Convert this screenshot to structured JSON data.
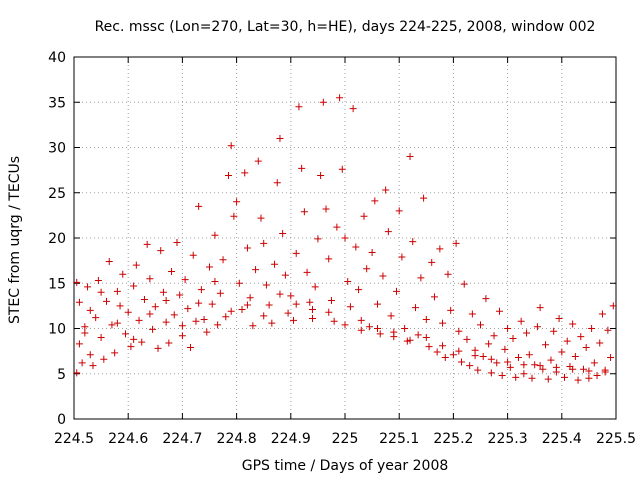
{
  "chart_data": {
    "type": "scatter",
    "title": "Rec. mssc (Lon=270, Lat=30, h=HE), days 224-225, 2008, window 002",
    "xlabel": "GPS time / Days of year 2008",
    "ylabel": "STEC from uqrg / TECUs",
    "xlim": [
      224.5,
      225.5
    ],
    "ylim": [
      0,
      40
    ],
    "x_ticks": [
      224.5,
      224.6,
      224.7,
      224.8,
      224.9,
      225,
      225.1,
      225.2,
      225.3,
      225.4,
      225.5
    ],
    "x_tick_labels": [
      "224.5",
      "224.6",
      "224.7",
      "224.8",
      "224.9",
      "225",
      "225.1",
      "225.2",
      "225.3",
      "225.4",
      "225.5"
    ],
    "y_ticks": [
      0,
      5,
      10,
      15,
      20,
      25,
      30,
      35,
      40
    ],
    "y_tick_labels": [
      "0",
      "5",
      "10",
      "15",
      "20",
      "25",
      "30",
      "35",
      "40"
    ],
    "grid": true,
    "marker": "+",
    "marker_color": "#cc0000",
    "series": [
      {
        "points": [
          [
            224.505,
            15.1
          ],
          [
            224.51,
            12.9
          ],
          [
            224.51,
            8.3
          ],
          [
            224.505,
            5.1
          ],
          [
            224.515,
            6.2
          ],
          [
            224.52,
            10.2
          ],
          [
            224.525,
            14.6
          ],
          [
            224.53,
            12.0
          ],
          [
            224.53,
            7.1
          ],
          [
            224.535,
            5.9
          ],
          [
            224.54,
            11.2
          ],
          [
            224.545,
            15.3
          ],
          [
            224.55,
            9.0
          ],
          [
            224.555,
            6.6
          ],
          [
            224.56,
            13.0
          ],
          [
            224.565,
            17.4
          ],
          [
            224.57,
            10.4
          ],
          [
            224.575,
            7.3
          ],
          [
            224.58,
            14.1
          ],
          [
            224.585,
            12.5
          ],
          [
            224.59,
            16.0
          ],
          [
            224.595,
            9.4
          ],
          [
            224.6,
            11.8
          ],
          [
            224.605,
            8.0
          ],
          [
            224.61,
            14.7
          ],
          [
            224.615,
            17.0
          ],
          [
            224.62,
            10.9
          ],
          [
            224.625,
            8.5
          ],
          [
            224.63,
            13.2
          ],
          [
            224.635,
            19.3
          ],
          [
            224.64,
            15.5
          ],
          [
            224.645,
            9.9
          ],
          [
            224.65,
            12.4
          ],
          [
            224.655,
            7.8
          ],
          [
            224.66,
            18.6
          ],
          [
            224.665,
            14.0
          ],
          [
            224.67,
            10.7
          ],
          [
            224.675,
            8.4
          ],
          [
            224.68,
            16.3
          ],
          [
            224.685,
            11.5
          ],
          [
            224.69,
            19.5
          ],
          [
            224.695,
            13.7
          ],
          [
            224.7,
            9.2
          ],
          [
            224.705,
            15.4
          ],
          [
            224.71,
            12.2
          ],
          [
            224.715,
            7.9
          ],
          [
            224.72,
            18.1
          ],
          [
            224.725,
            10.8
          ],
          [
            224.73,
            23.5
          ],
          [
            224.735,
            14.3
          ],
          [
            224.74,
            11.0
          ],
          [
            224.745,
            9.6
          ],
          [
            224.75,
            16.8
          ],
          [
            224.755,
            12.7
          ],
          [
            224.76,
            20.3
          ],
          [
            224.765,
            10.4
          ],
          [
            224.77,
            13.9
          ],
          [
            224.775,
            17.6
          ],
          [
            224.78,
            11.3
          ],
          [
            224.785,
            26.9
          ],
          [
            224.79,
            30.2
          ],
          [
            224.795,
            22.4
          ],
          [
            224.8,
            24.0
          ],
          [
            224.805,
            15.0
          ],
          [
            224.81,
            12.1
          ],
          [
            224.815,
            27.2
          ],
          [
            224.82,
            18.9
          ],
          [
            224.825,
            13.4
          ],
          [
            224.83,
            10.3
          ],
          [
            224.835,
            16.5
          ],
          [
            224.84,
            28.5
          ],
          [
            224.845,
            22.2
          ],
          [
            224.85,
            19.4
          ],
          [
            224.855,
            14.8
          ],
          [
            224.86,
            12.6
          ],
          [
            224.865,
            10.6
          ],
          [
            224.87,
            17.1
          ],
          [
            224.875,
            26.1
          ],
          [
            224.88,
            31.0
          ],
          [
            224.885,
            20.5
          ],
          [
            224.89,
            15.9
          ],
          [
            224.895,
            11.7
          ],
          [
            224.9,
            13.6
          ],
          [
            224.905,
            10.9
          ],
          [
            224.91,
            18.3
          ],
          [
            224.915,
            34.5
          ],
          [
            224.92,
            27.7
          ],
          [
            224.925,
            22.9
          ],
          [
            224.93,
            16.2
          ],
          [
            224.935,
            12.9
          ],
          [
            224.94,
            11.1
          ],
          [
            224.945,
            14.6
          ],
          [
            224.95,
            19.9
          ],
          [
            224.955,
            26.9
          ],
          [
            224.96,
            35.0
          ],
          [
            224.965,
            23.2
          ],
          [
            224.97,
            17.7
          ],
          [
            224.975,
            13.1
          ],
          [
            224.98,
            10.8
          ],
          [
            224.985,
            21.2
          ],
          [
            224.99,
            35.5
          ],
          [
            224.995,
            27.6
          ],
          [
            225.0,
            20.0
          ],
          [
            225.005,
            15.2
          ],
          [
            225.01,
            12.4
          ],
          [
            225.015,
            34.3
          ],
          [
            225.02,
            19.0
          ],
          [
            225.025,
            14.3
          ],
          [
            225.03,
            9.8
          ],
          [
            225.035,
            22.4
          ],
          [
            225.04,
            16.6
          ],
          [
            225.045,
            10.2
          ],
          [
            225.05,
            18.4
          ],
          [
            225.055,
            24.1
          ],
          [
            225.06,
            12.7
          ],
          [
            225.065,
            9.4
          ],
          [
            225.07,
            15.8
          ],
          [
            225.075,
            25.3
          ],
          [
            225.08,
            20.7
          ],
          [
            225.085,
            11.4
          ],
          [
            225.09,
            9.1
          ],
          [
            225.095,
            14.1
          ],
          [
            225.1,
            23.0
          ],
          [
            225.105,
            17.9
          ],
          [
            225.11,
            10.0
          ],
          [
            225.115,
            8.6
          ],
          [
            225.12,
            29.0
          ],
          [
            225.125,
            19.6
          ],
          [
            225.13,
            12.3
          ],
          [
            225.135,
            9.3
          ],
          [
            225.14,
            15.6
          ],
          [
            225.145,
            24.4
          ],
          [
            225.15,
            11.0
          ],
          [
            225.155,
            8.0
          ],
          [
            225.16,
            17.3
          ],
          [
            225.165,
            13.5
          ],
          [
            225.17,
            7.4
          ],
          [
            225.175,
            18.8
          ],
          [
            225.18,
            10.6
          ],
          [
            225.185,
            6.8
          ],
          [
            225.19,
            16.0
          ],
          [
            225.195,
            12.0
          ],
          [
            225.2,
            7.1
          ],
          [
            225.205,
            19.4
          ],
          [
            225.21,
            9.7
          ],
          [
            225.215,
            6.3
          ],
          [
            225.22,
            14.9
          ],
          [
            225.225,
            8.8
          ],
          [
            225.23,
            5.9
          ],
          [
            225.235,
            11.6
          ],
          [
            225.24,
            7.6
          ],
          [
            225.245,
            5.4
          ],
          [
            225.25,
            10.4
          ],
          [
            225.255,
            6.9
          ],
          [
            225.26,
            13.3
          ],
          [
            225.265,
            8.3
          ],
          [
            225.27,
            5.1
          ],
          [
            225.275,
            9.2
          ],
          [
            225.28,
            6.2
          ],
          [
            225.285,
            11.9
          ],
          [
            225.29,
            4.8
          ],
          [
            225.295,
            7.7
          ],
          [
            225.3,
            10.0
          ],
          [
            225.305,
            5.7
          ],
          [
            225.31,
            8.9
          ],
          [
            225.315,
            4.6
          ],
          [
            225.32,
            6.8
          ],
          [
            225.325,
            10.8
          ],
          [
            225.33,
            5.0
          ],
          [
            225.335,
            9.5
          ],
          [
            225.34,
            7.1
          ],
          [
            225.345,
            4.5
          ],
          [
            225.35,
            6.0
          ],
          [
            225.355,
            10.2
          ],
          [
            225.36,
            12.3
          ],
          [
            225.365,
            5.5
          ],
          [
            225.37,
            8.2
          ],
          [
            225.375,
            4.4
          ],
          [
            225.38,
            6.5
          ],
          [
            225.385,
            9.7
          ],
          [
            225.39,
            5.2
          ],
          [
            225.395,
            11.1
          ],
          [
            225.4,
            7.4
          ],
          [
            225.405,
            4.6
          ],
          [
            225.41,
            8.6
          ],
          [
            225.415,
            5.8
          ],
          [
            225.42,
            10.5
          ],
          [
            225.425,
            6.9
          ],
          [
            225.43,
            4.3
          ],
          [
            225.435,
            9.1
          ],
          [
            225.44,
            5.5
          ],
          [
            225.445,
            7.9
          ],
          [
            225.45,
            4.5
          ],
          [
            225.455,
            10.0
          ],
          [
            225.46,
            6.2
          ],
          [
            225.465,
            4.8
          ],
          [
            225.47,
            8.4
          ],
          [
            225.475,
            11.6
          ],
          [
            225.48,
            5.4
          ],
          [
            225.485,
            9.8
          ],
          [
            225.49,
            6.8
          ],
          [
            225.495,
            12.5
          ],
          [
            224.52,
            9.5
          ],
          [
            224.55,
            14.0
          ],
          [
            224.58,
            10.6
          ],
          [
            224.61,
            8.8
          ],
          [
            224.64,
            11.6
          ],
          [
            224.67,
            13.1
          ],
          [
            224.7,
            10.3
          ],
          [
            224.73,
            12.8
          ],
          [
            224.76,
            15.2
          ],
          [
            224.79,
            11.9
          ],
          [
            224.82,
            12.6
          ],
          [
            224.85,
            11.4
          ],
          [
            224.88,
            13.8
          ],
          [
            224.91,
            12.7
          ],
          [
            224.94,
            12.1
          ],
          [
            224.97,
            11.8
          ],
          [
            225.0,
            10.4
          ],
          [
            225.03,
            10.9
          ],
          [
            225.06,
            10.0
          ],
          [
            225.09,
            9.6
          ],
          [
            225.12,
            8.7
          ],
          [
            225.15,
            9.0
          ],
          [
            225.18,
            8.1
          ],
          [
            225.21,
            7.5
          ],
          [
            225.24,
            7.0
          ],
          [
            225.27,
            6.6
          ],
          [
            225.3,
            6.3
          ],
          [
            225.33,
            6.0
          ],
          [
            225.36,
            5.9
          ],
          [
            225.39,
            5.7
          ],
          [
            225.42,
            5.5
          ],
          [
            225.45,
            5.3
          ],
          [
            225.48,
            5.2
          ]
        ]
      }
    ]
  }
}
